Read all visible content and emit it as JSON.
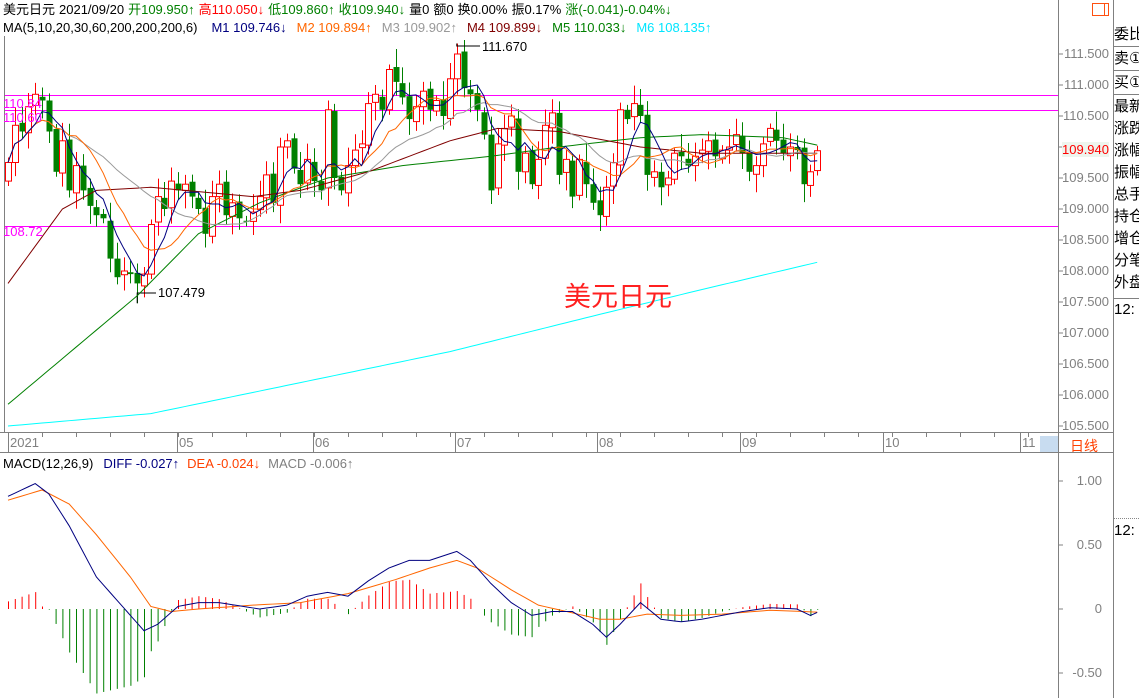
{
  "header": {
    "symbol": "美元日元",
    "date": "2021/09/20",
    "open": "开109.950↑",
    "high": "高110.050↓",
    "low": "低109.860↑",
    "close": "收109.940↓",
    "volume": "量0",
    "amount": "额0",
    "turnover": "换0.00%",
    "amplitude": "振0.17%",
    "change": "涨(-0.041)-0.04%↓"
  },
  "ma_header": {
    "params": "MA(5,10,20,30,60,200,200,200,6)",
    "m1": "M1 109.746↓",
    "m2": "M2 109.894↑",
    "m3": "M3 109.902↑",
    "m4": "M4 109.899↓",
    "m5": "M5 110.033↓",
    "m6": "M6 108.135↑"
  },
  "macd_header": {
    "params": "MACD(12,26,9)",
    "diff": "DIFF -0.027↑",
    "dea": "DEA -0.024↓",
    "macd": "MACD -0.006↑"
  },
  "colors": {
    "up": "#ff0000",
    "down": "#008000",
    "m1": "#000080",
    "m2": "#ff6600",
    "m3": "#999999",
    "m4": "#800000",
    "m5": "#008000",
    "m6": "#00ffff",
    "hline": "#ff00ff",
    "diff": "#000080",
    "dea": "#ff6600"
  },
  "watermark": "美元日元",
  "period_label": "日线",
  "right_panel": {
    "labels": [
      "委比",
      "卖①",
      "买①",
      "最新",
      "涨跌",
      "涨幅",
      "振幅",
      "总手",
      "持仓",
      "增仓",
      "分笔",
      "外盘"
    ],
    "time1": "12:",
    "time2": "12:"
  },
  "chart_data": [
    {
      "type": "candlestick",
      "title": "美元日元",
      "x_ticks": [
        "2021",
        "05",
        "06",
        "07",
        "08",
        "09",
        "10",
        "11"
      ],
      "y_ticks": [
        "111.500",
        "111.000",
        "110.500",
        "110.000",
        "109.500",
        "109.000",
        "108.500",
        "108.000",
        "107.500",
        "107.000",
        "106.500",
        "106.000",
        "105.500"
      ],
      "ylim": [
        105.3,
        111.85
      ],
      "current_price": "109.940",
      "horizontal_lines": [
        "110.84",
        "110.60",
        "108.72"
      ],
      "annotations": {
        "high": "111.670",
        "low": "107.479"
      },
      "close": [
        109.75,
        110.35,
        110.25,
        110.65,
        110.85,
        110.75,
        110.25,
        109.6,
        110.1,
        109.3,
        109.7,
        109.3,
        109.05,
        108.9,
        108.85,
        108.2,
        107.9,
        108.0,
        107.95,
        107.8,
        107.95,
        108.75,
        109.2,
        109.0,
        109.45,
        109.3,
        109.4,
        109.2,
        109.0,
        108.6,
        109.2,
        109.4,
        108.9,
        109.1,
        108.85,
        108.8,
        108.95,
        109.2,
        109.55,
        109.1,
        110.0,
        110.1,
        109.65,
        109.4,
        109.8,
        109.45,
        109.3,
        110.6,
        109.5,
        109.3,
        109.7,
        109.95,
        110.05,
        110.7,
        110.85,
        110.6,
        111.25,
        111.05,
        110.8,
        110.45,
        110.65,
        110.9,
        110.6,
        110.75,
        110.5,
        111.1,
        111.5,
        110.95,
        110.85,
        110.6,
        110.2,
        109.3,
        110.05,
        110.3,
        110.5,
        109.6,
        109.9,
        109.4,
        109.8,
        110.35,
        110.55,
        109.55,
        109.8,
        109.2,
        109.8,
        109.4,
        109.1,
        108.9,
        109.35,
        109.75,
        110.6,
        110.45,
        110.7,
        110.5,
        109.55,
        109.6,
        109.35,
        109.5,
        109.9,
        109.85,
        109.7,
        109.85,
        109.95,
        110.1,
        109.85,
        109.95,
        110.0,
        110.2,
        109.9,
        109.6,
        109.7,
        110.05,
        110.3,
        110.1,
        109.9,
        110.0,
        109.95,
        109.4,
        109.6,
        109.94
      ],
      "m4_keypoints": [
        [
          0,
          107.8
        ],
        [
          8,
          109.0
        ],
        [
          13,
          109.3
        ],
        [
          21,
          109.35
        ],
        [
          36,
          109.2
        ],
        [
          43,
          109.3
        ],
        [
          53,
          109.6
        ],
        [
          65,
          110.1
        ],
        [
          72,
          110.3
        ],
        [
          81,
          110.25
        ],
        [
          93,
          110.0
        ],
        [
          102,
          109.9
        ],
        [
          119,
          109.9
        ]
      ],
      "m5_keypoints": [
        [
          0,
          105.85
        ],
        [
          19,
          107.6
        ],
        [
          28,
          108.6
        ],
        [
          37,
          109.1
        ],
        [
          47,
          109.5
        ],
        [
          58,
          109.7
        ],
        [
          71,
          109.85
        ],
        [
          81,
          110.0
        ],
        [
          93,
          110.15
        ],
        [
          102,
          110.2
        ],
        [
          114,
          110.15
        ],
        [
          119,
          110.03
        ]
      ],
      "m6_keypoints": [
        [
          0,
          105.5
        ],
        [
          21,
          105.7
        ],
        [
          43,
          106.2
        ],
        [
          65,
          106.7
        ],
        [
          87,
          107.3
        ],
        [
          102,
          107.7
        ],
        [
          119,
          108.14
        ]
      ]
    },
    {
      "type": "line",
      "title": "MACD(12,26,9)",
      "y_ticks": [
        "1.00",
        "0.50",
        "0",
        "-0.50"
      ],
      "ylim": [
        -0.69,
        1.1
      ],
      "diff_keypoints": [
        [
          0,
          0.88
        ],
        [
          4,
          0.98
        ],
        [
          6,
          0.9
        ],
        [
          9,
          0.65
        ],
        [
          13,
          0.25
        ],
        [
          18,
          -0.05
        ],
        [
          20,
          -0.17
        ],
        [
          22,
          -0.12
        ],
        [
          25,
          0.02
        ],
        [
          28,
          0.05
        ],
        [
          31,
          0.05
        ],
        [
          37,
          0.0
        ],
        [
          41,
          0.03
        ],
        [
          44,
          0.1
        ],
        [
          47,
          0.13
        ],
        [
          50,
          0.1
        ],
        [
          53,
          0.22
        ],
        [
          56,
          0.32
        ],
        [
          59,
          0.38
        ],
        [
          62,
          0.38
        ],
        [
          66,
          0.45
        ],
        [
          68,
          0.38
        ],
        [
          71,
          0.2
        ],
        [
          74,
          0.05
        ],
        [
          77,
          -0.05
        ],
        [
          80,
          -0.02
        ],
        [
          83,
          -0.02
        ],
        [
          86,
          -0.12
        ],
        [
          88,
          -0.22
        ],
        [
          90,
          -0.12
        ],
        [
          93,
          0.05
        ],
        [
          96,
          -0.08
        ],
        [
          99,
          -0.1
        ],
        [
          102,
          -0.08
        ],
        [
          108,
          -0.02
        ],
        [
          112,
          0.01
        ],
        [
          116,
          0.0
        ],
        [
          118,
          -0.05
        ],
        [
          119,
          -0.027
        ]
      ],
      "dea_keypoints": [
        [
          0,
          0.85
        ],
        [
          5,
          0.93
        ],
        [
          9,
          0.82
        ],
        [
          13,
          0.58
        ],
        [
          18,
          0.25
        ],
        [
          21,
          0.02
        ],
        [
          24,
          -0.02
        ],
        [
          28,
          0.0
        ],
        [
          36,
          0.03
        ],
        [
          43,
          0.05
        ],
        [
          50,
          0.12
        ],
        [
          57,
          0.23
        ],
        [
          62,
          0.32
        ],
        [
          66,
          0.38
        ],
        [
          69,
          0.32
        ],
        [
          74,
          0.15
        ],
        [
          78,
          0.03
        ],
        [
          83,
          -0.03
        ],
        [
          87,
          -0.08
        ],
        [
          90,
          -0.08
        ],
        [
          94,
          -0.04
        ],
        [
          99,
          -0.05
        ],
        [
          105,
          -0.04
        ],
        [
          112,
          -0.01
        ],
        [
          119,
          -0.024
        ]
      ]
    }
  ]
}
